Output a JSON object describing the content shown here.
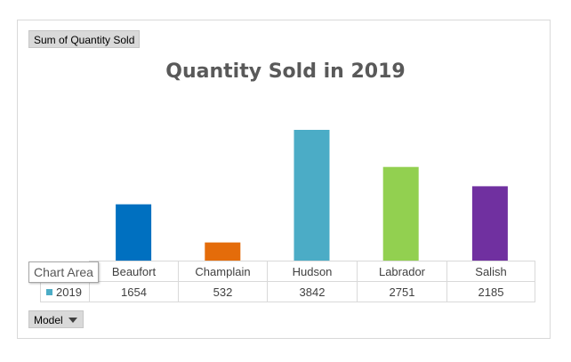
{
  "value_field_label": "Sum of Quantity  Sold",
  "axis_field_label": "Model",
  "tooltip_text": "Chart Area",
  "chart_data": {
    "type": "bar",
    "title": "Quantity Sold in 2019",
    "categories": [
      "Beaufort",
      "Champlain",
      "Hudson",
      "Labrador",
      "Salish"
    ],
    "series": [
      {
        "name": "2019",
        "values": [
          1654,
          532,
          3842,
          2751,
          2185
        ]
      }
    ],
    "bar_colors": [
      "#0070c0",
      "#e46c0a",
      "#4bacc6",
      "#92d050",
      "#7030a0"
    ],
    "legend_color": "#4bacc6",
    "ylim": [
      0,
      3842
    ],
    "xlabel": "",
    "ylabel": "",
    "grid": false,
    "legend": "data-table"
  }
}
